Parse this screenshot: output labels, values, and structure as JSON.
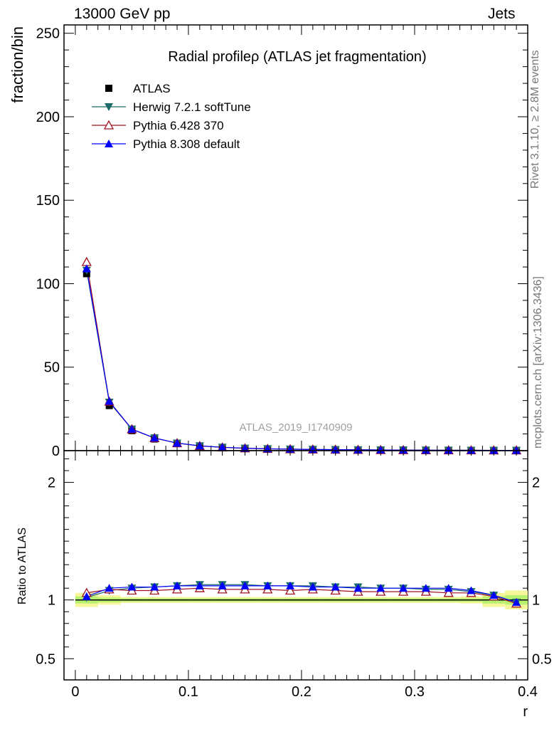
{
  "header": {
    "left": "13000 GeV pp",
    "right": "Jets"
  },
  "side_labels": {
    "rivet": "Rivet 3.1.10, ≥ 2.8M events",
    "mcplots": "mcplots.cern.ch [arXiv:1306.3436]"
  },
  "chart_data": [
    {
      "type": "line",
      "title": "Radial profileρ (ATLAS jet fragmentation)",
      "watermark": "ATLAS_2019_I1740909",
      "xlabel": "",
      "ylabel": "fraction/bin",
      "xlim": [
        -0.01,
        0.4
      ],
      "ylim": [
        0,
        255
      ],
      "yticks": [
        0,
        50,
        100,
        150,
        200,
        250
      ],
      "x": [
        0.01,
        0.03,
        0.05,
        0.07,
        0.09,
        0.11,
        0.13,
        0.15,
        0.17,
        0.19,
        0.21,
        0.23,
        0.25,
        0.27,
        0.29,
        0.31,
        0.33,
        0.35,
        0.37,
        0.39
      ],
      "legend_position": "top-left",
      "series": [
        {
          "name": "ATLAS",
          "color": "#000000",
          "marker": "square",
          "values": [
            106,
            27,
            12,
            7,
            4.2,
            2.6,
            1.8,
            1.3,
            1.0,
            0.8,
            0.65,
            0.55,
            0.45,
            0.38,
            0.32,
            0.27,
            0.23,
            0.2,
            0.17,
            0.15
          ]
        },
        {
          "name": "Herwig 7.2.1 softTune",
          "color": "#1d6b6b",
          "marker": "triangle-down",
          "values": [
            108,
            29,
            12.9,
            7.6,
            4.5,
            2.9,
            2.0,
            1.45,
            1.1,
            0.9,
            0.72,
            0.6,
            0.5,
            0.42,
            0.35,
            0.29,
            0.25,
            0.21,
            0.18,
            0.15
          ]
        },
        {
          "name": "Pythia 6.428 370",
          "color": "#a01020",
          "marker": "triangle-open",
          "values": [
            113,
            29.4,
            12.8,
            7.5,
            4.5,
            2.8,
            1.95,
            1.4,
            1.08,
            0.87,
            0.7,
            0.58,
            0.48,
            0.4,
            0.34,
            0.28,
            0.24,
            0.21,
            0.17,
            0.15
          ]
        },
        {
          "name": "Pythia 8.308 default",
          "color": "#0000ff",
          "marker": "triangle-up",
          "values": [
            109,
            29.6,
            12.9,
            7.6,
            4.5,
            2.9,
            2.0,
            1.46,
            1.12,
            0.9,
            0.72,
            0.6,
            0.49,
            0.41,
            0.35,
            0.29,
            0.25,
            0.21,
            0.18,
            0.15
          ]
        }
      ]
    },
    {
      "type": "line",
      "title": "",
      "xlabel": "r",
      "ylabel": "Ratio to ATLAS",
      "xlim": [
        -0.01,
        0.4
      ],
      "ylim": [
        0.32,
        2.27
      ],
      "yticks": [
        0.5,
        1,
        2
      ],
      "xticks": [
        0,
        0.1,
        0.2,
        0.3,
        0.4
      ],
      "x": [
        0.01,
        0.03,
        0.05,
        0.07,
        0.09,
        0.11,
        0.13,
        0.15,
        0.17,
        0.19,
        0.21,
        0.23,
        0.25,
        0.27,
        0.29,
        0.31,
        0.33,
        0.35,
        0.37,
        0.39
      ],
      "band_inner": [
        0.03,
        0.02,
        0.015,
        0.015,
        0.015,
        0.015,
        0.015,
        0.015,
        0.015,
        0.015,
        0.015,
        0.015,
        0.015,
        0.015,
        0.015,
        0.015,
        0.015,
        0.015,
        0.03,
        0.04
      ],
      "band_outer": [
        0.06,
        0.04,
        0.025,
        0.025,
        0.025,
        0.025,
        0.025,
        0.025,
        0.025,
        0.025,
        0.025,
        0.025,
        0.025,
        0.025,
        0.025,
        0.025,
        0.025,
        0.03,
        0.06,
        0.08
      ],
      "band_colors": {
        "inner": "#b8f070",
        "outer": "#f5f59a"
      },
      "series": [
        {
          "name": "Herwig 7.2.1 softTune",
          "color": "#1d6b6b",
          "marker": "triangle-down",
          "values": [
            1.02,
            1.08,
            1.1,
            1.11,
            1.12,
            1.13,
            1.13,
            1.13,
            1.12,
            1.12,
            1.12,
            1.11,
            1.11,
            1.1,
            1.1,
            1.09,
            1.09,
            1.07,
            1.04,
            0.98
          ]
        },
        {
          "name": "Pythia 6.428 370",
          "color": "#a01020",
          "marker": "triangle-open",
          "values": [
            1.06,
            1.09,
            1.08,
            1.08,
            1.09,
            1.1,
            1.09,
            1.09,
            1.09,
            1.08,
            1.09,
            1.08,
            1.07,
            1.07,
            1.07,
            1.07,
            1.06,
            1.06,
            1.03,
            0.97
          ]
        },
        {
          "name": "Pythia 8.308 default",
          "color": "#0000ff",
          "marker": "triangle-up",
          "values": [
            1.03,
            1.1,
            1.11,
            1.11,
            1.12,
            1.12,
            1.12,
            1.12,
            1.12,
            1.12,
            1.11,
            1.11,
            1.1,
            1.1,
            1.1,
            1.1,
            1.1,
            1.08,
            1.04,
            0.98
          ]
        }
      ]
    }
  ]
}
